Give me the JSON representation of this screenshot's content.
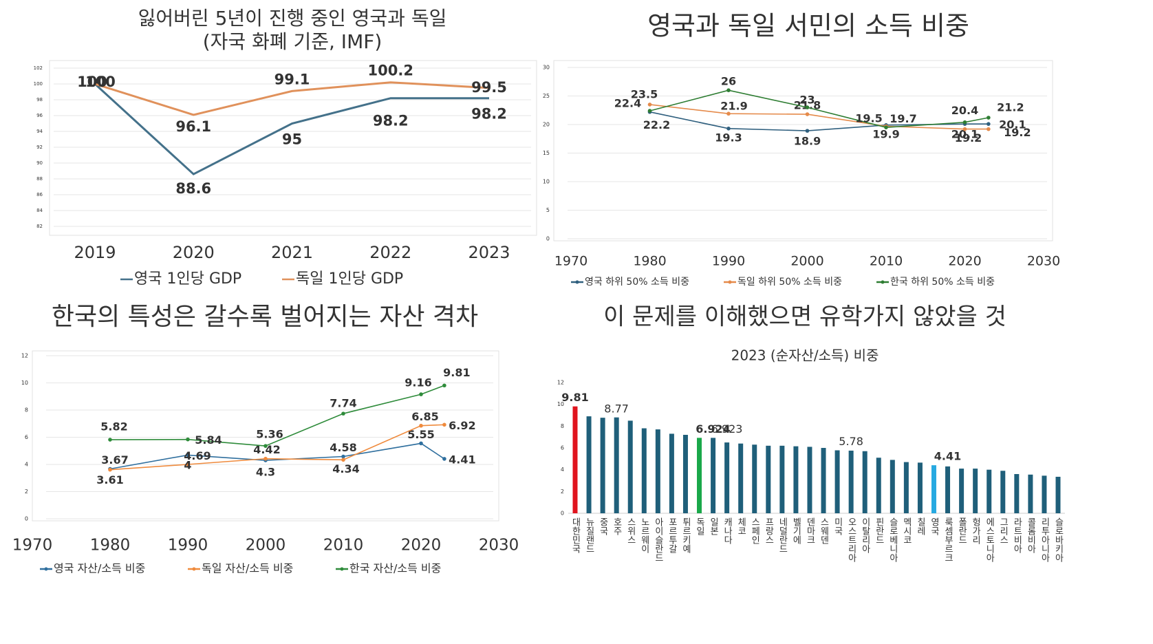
{
  "chart_data": [
    {
      "type": "line",
      "title": "잃어버린 5년이 진행 중인 영국과 독일",
      "subtitle": "(자국 화폐 기준, IMF)",
      "categories": [
        "2019",
        "2020",
        "2021",
        "2022",
        "2023"
      ],
      "ylim": [
        82,
        102
      ],
      "yticks": [
        82,
        84,
        86,
        88,
        90,
        92,
        94,
        96,
        98,
        100,
        102
      ],
      "grid": true,
      "series": [
        {
          "name": "영국 1인당 GDP",
          "color": "#44718a",
          "label_color": "#2aa6d6",
          "values": [
            100,
            88.6,
            95,
            98.2,
            98.2
          ]
        },
        {
          "name": "독일 1인당 GDP",
          "color": "#e0915b",
          "label_color": "#c3202b",
          "values": [
            100,
            96.1,
            99.1,
            100.2,
            99.5
          ]
        }
      ]
    },
    {
      "type": "line",
      "title": "영국과 독일 서민의 소득 비중",
      "x": [
        1980,
        1990,
        2000,
        2010,
        2020,
        2023
      ],
      "xlim": [
        1970,
        2030
      ],
      "xticks": [
        1970,
        1980,
        1990,
        2000,
        2010,
        2020,
        2030
      ],
      "ylim": [
        0,
        30
      ],
      "yticks": [
        0,
        5,
        10,
        15,
        20,
        25,
        30
      ],
      "grid": true,
      "series": [
        {
          "name": "영국 하위 50% 소득 비중",
          "color": "#2f5f7e",
          "label_color": "#1aa0d8",
          "values": [
            22.2,
            19.3,
            18.9,
            19.9,
            20.1,
            20.1
          ]
        },
        {
          "name": "독일 하위 50% 소득 비중",
          "color": "#e58a4a",
          "label_color": "#d0121b",
          "values": [
            23.5,
            21.9,
            21.8,
            19.7,
            19.2,
            19.2
          ]
        },
        {
          "name": "한국 하위 50% 소득 비중",
          "color": "#2e7d32",
          "label_color": "#18a048",
          "values": [
            22.4,
            26,
            23,
            19.5,
            20.4,
            21.2
          ]
        }
      ]
    },
    {
      "type": "line",
      "title": "한국의 특성은 갈수록 벌어지는 자산 격차",
      "x": [
        1980,
        1990,
        2000,
        2010,
        2020,
        2023
      ],
      "xlim": [
        1970,
        2030
      ],
      "xticks": [
        1970,
        1980,
        1990,
        2000,
        2010,
        2020,
        2030
      ],
      "ylim": [
        0,
        12
      ],
      "yticks": [
        0,
        2,
        4,
        6,
        8,
        10,
        12
      ],
      "grid": true,
      "series": [
        {
          "name": "영국 자산/소득 비중",
          "color": "#2f6f9e",
          "label_color": "#1f6fb2",
          "values": [
            3.67,
            4.69,
            4.3,
            4.58,
            5.55,
            4.41
          ]
        },
        {
          "name": "독일 자산/소득 비중",
          "color": "#ef8a3c",
          "label_color": "#d0121b",
          "values": [
            3.61,
            4,
            4.42,
            4.34,
            6.85,
            6.92
          ]
        },
        {
          "name": "한국 자산/소득 비중",
          "color": "#2e8b3a",
          "label_color": "#18a048",
          "values": [
            5.82,
            5.84,
            5.36,
            7.74,
            9.16,
            9.81
          ]
        }
      ]
    },
    {
      "type": "bar",
      "title": "이 문제를 이해했으면 유학가지 않았을 것",
      "subtitle": "2023 (순자산/소득) 비중",
      "categories": [
        "대한민국",
        "뉴질랜드",
        "중국",
        "호주",
        "스위스",
        "노르웨이",
        "아이슬란드",
        "포르투갈",
        "튀르키예",
        "독일",
        "일본",
        "캐나다",
        "체코",
        "스페인",
        "프랑스",
        "네덜란드",
        "벨기에",
        "덴마크",
        "스웨덴",
        "미국",
        "오스트리아",
        "이탈리아",
        "핀란드",
        "슬로베니아",
        "멕시코",
        "칠레",
        "영국",
        "룩셈부르크",
        "폴란드",
        "헝가리",
        "에스토니아",
        "그리스",
        "라트비아",
        "콜롬비아",
        "리투아니아",
        "슬로바키아"
      ],
      "values": [
        9.81,
        8.9,
        8.77,
        8.8,
        8.5,
        7.8,
        7.7,
        7.3,
        7.2,
        6.924,
        6.923,
        6.5,
        6.4,
        6.3,
        6.2,
        6.2,
        6.15,
        6.1,
        6.0,
        5.78,
        5.75,
        5.7,
        5.1,
        4.9,
        4.7,
        4.65,
        4.41,
        4.3,
        4.1,
        4.1,
        4.0,
        3.9,
        3.6,
        3.55,
        3.45,
        3.35
      ],
      "value_labels": [
        "9.81",
        null,
        "8.77",
        null,
        null,
        null,
        null,
        null,
        null,
        "6.924",
        "6.923",
        null,
        null,
        null,
        null,
        null,
        null,
        null,
        null,
        "5.78",
        null,
        null,
        null,
        null,
        null,
        null,
        "4.41",
        null,
        null,
        null,
        null,
        null,
        null,
        null,
        null,
        null
      ],
      "color": "#1f5f7a",
      "colors": [
        "#e0141e",
        "#1f5f7a",
        "#1f5f7a",
        "#1f5f7a",
        "#1f5f7a",
        "#1f5f7a",
        "#1f5f7a",
        "#1f5f7a",
        "#1f5f7a",
        "#1aa84a",
        "#1f5f7a",
        "#1f5f7a",
        "#1f5f7a",
        "#1f5f7a",
        "#1f5f7a",
        "#1f5f7a",
        "#1f5f7a",
        "#1f5f7a",
        "#1f5f7a",
        "#1f5f7a",
        "#1f5f7a",
        "#1f5f7a",
        "#1f5f7a",
        "#1f5f7a",
        "#1f5f7a",
        "#1f5f7a",
        "#27a9e1",
        "#1f5f7a",
        "#1f5f7a",
        "#1f5f7a",
        "#1f5f7a",
        "#1f5f7a",
        "#1f5f7a",
        "#1f5f7a",
        "#1f5f7a",
        "#1f5f7a"
      ],
      "ylim": [
        0,
        12
      ],
      "yticks": [
        0,
        2,
        4,
        6,
        8,
        10,
        12
      ],
      "grid": false
    }
  ]
}
